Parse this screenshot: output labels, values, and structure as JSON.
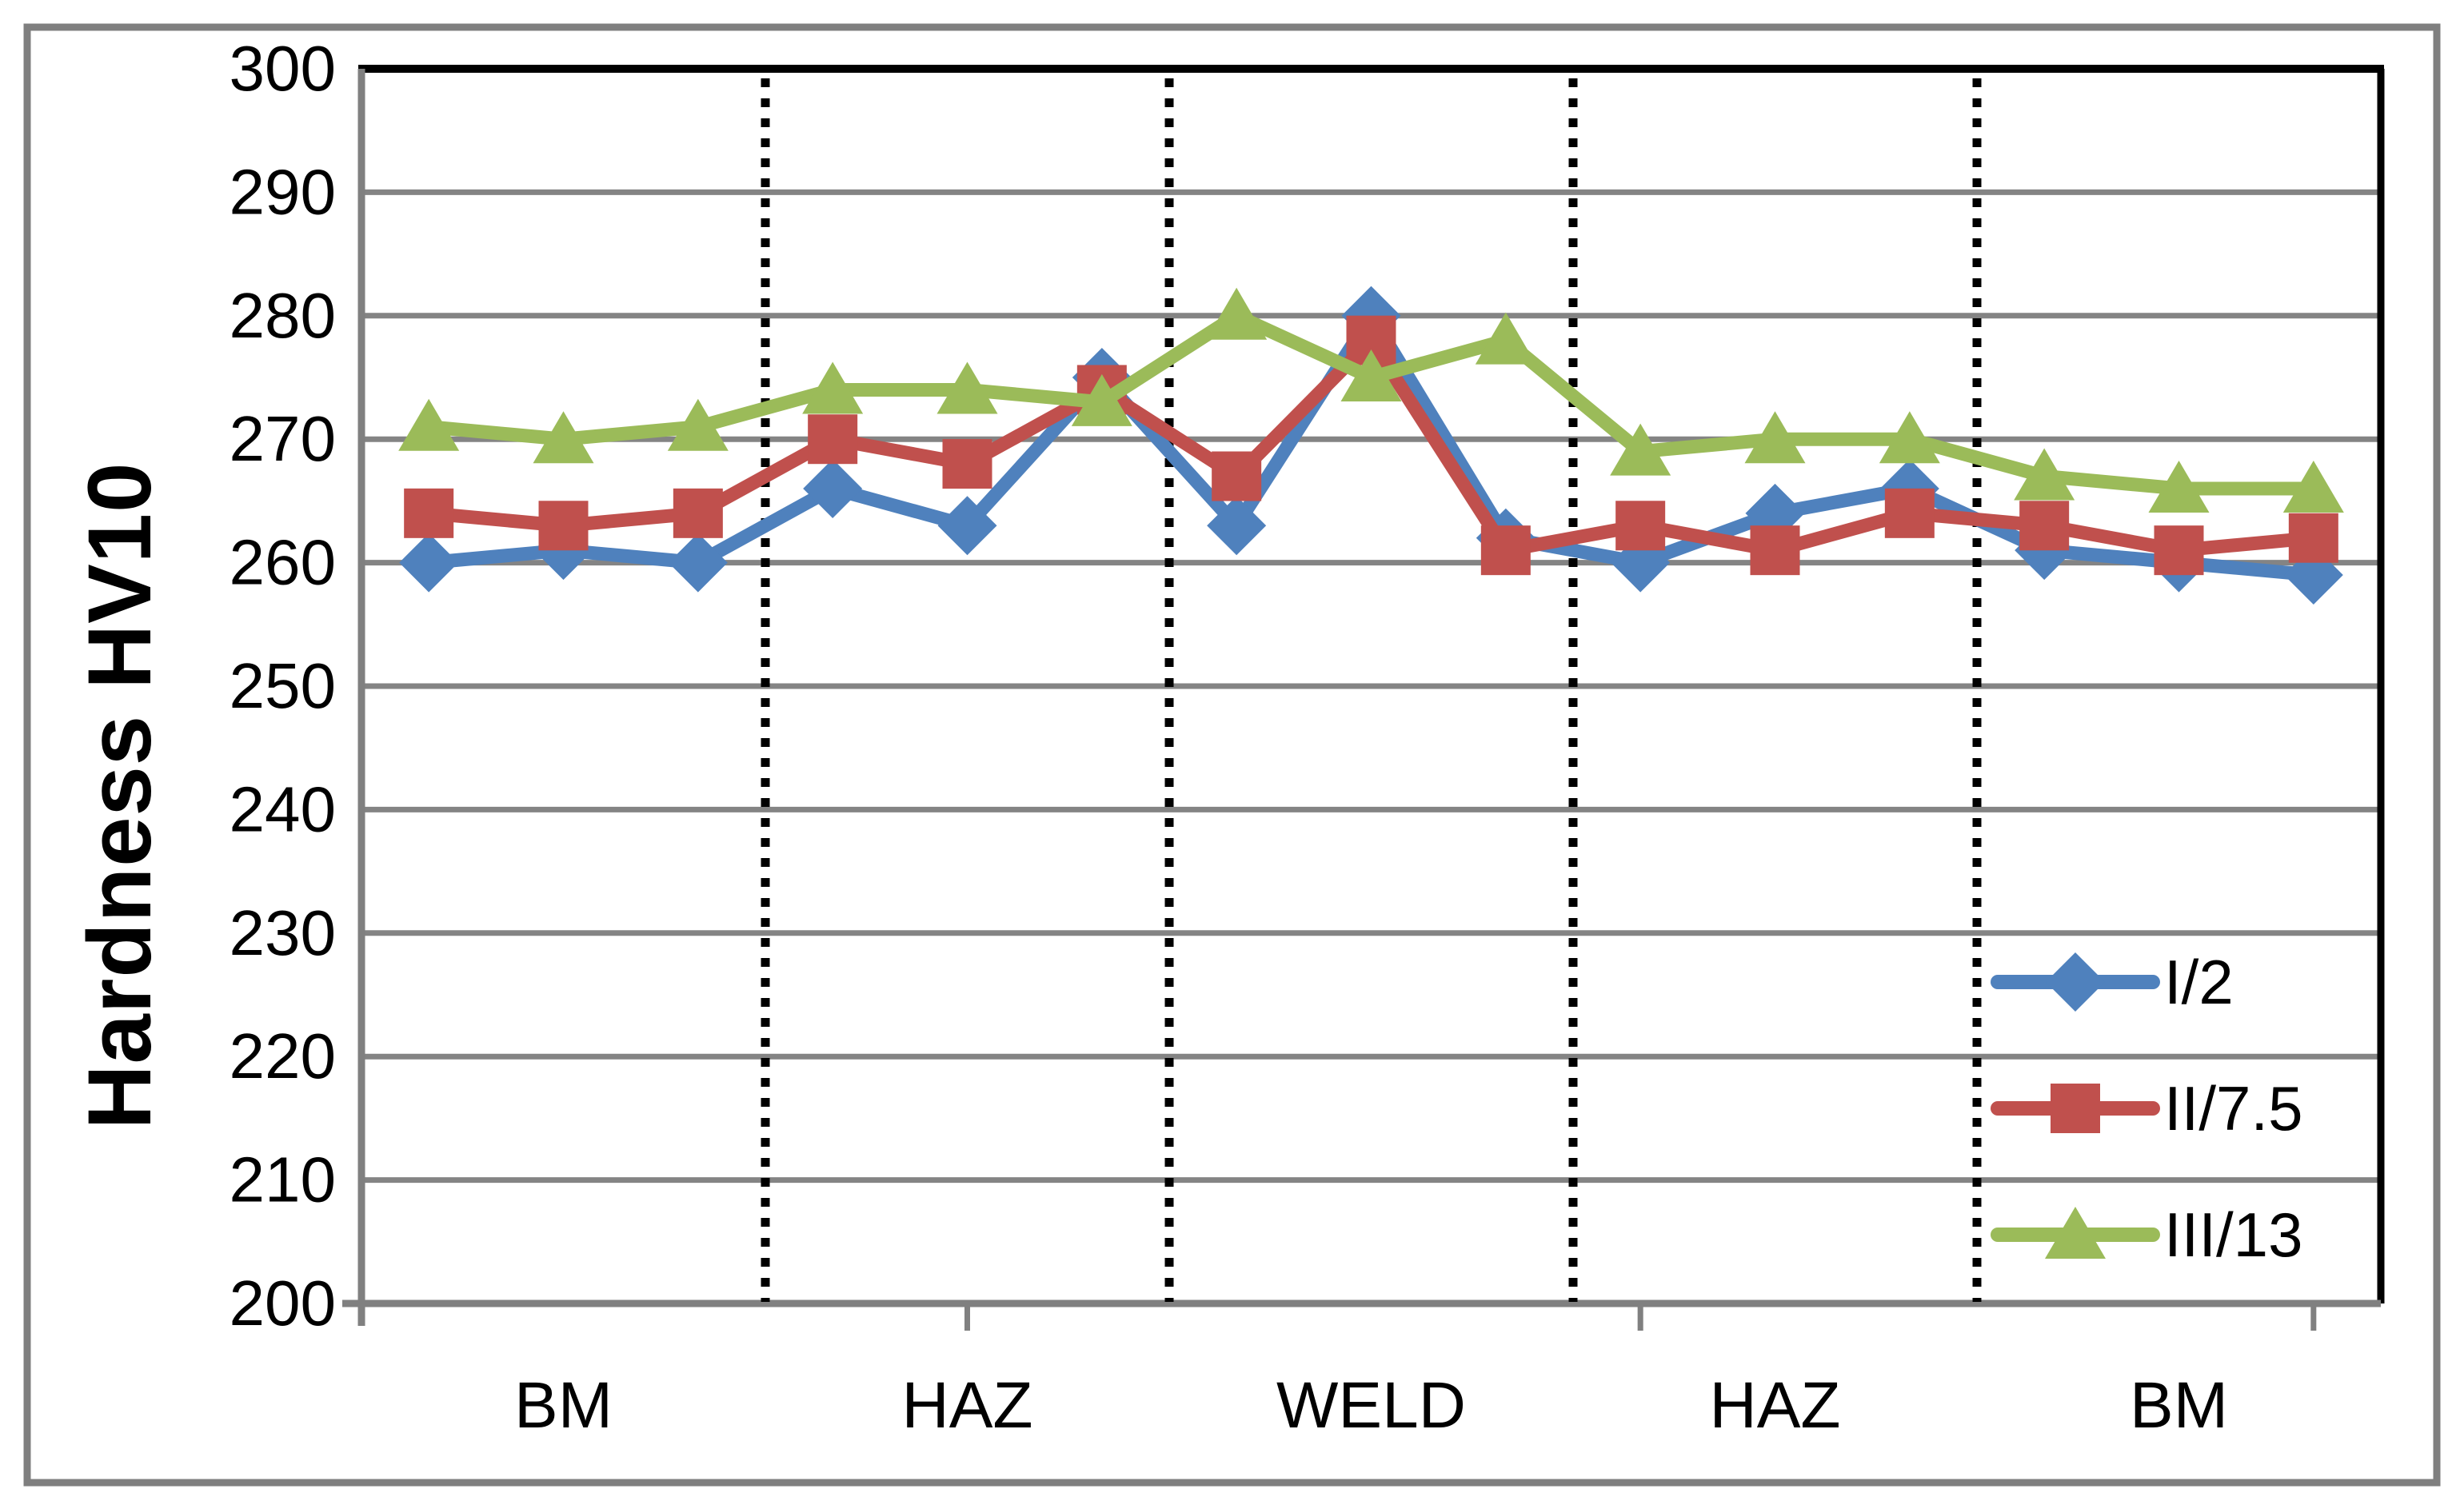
{
  "figure": {
    "background": "#ffffff",
    "outer_border_color": "#7f7f7f",
    "plot_border_top_right_color": "#000000",
    "axis_line_color": "#808080",
    "gridline_color": "#848484",
    "text_color": "#000000"
  },
  "chart_data": {
    "type": "line",
    "title": "",
    "xlabel": "",
    "ylabel": "Hardness HV10",
    "ylim": [
      200,
      300
    ],
    "ytick_interval": 10,
    "grid": "horizontal-only",
    "legend_position": "inside-right",
    "zone_divider_style": "black-dotted-vertical",
    "zones": [
      {
        "label": "BM",
        "points": 3
      },
      {
        "label": "HAZ",
        "points": 3
      },
      {
        "label": "WELD",
        "points": 3
      },
      {
        "label": "HAZ",
        "points": 3
      },
      {
        "label": "BM",
        "points": 3
      }
    ],
    "zone_boundaries_after_point": [
      3,
      6,
      9,
      12
    ],
    "x_axis_major_ticks_at_points": [
      5,
      10,
      15
    ],
    "series": [
      {
        "name": "I/2",
        "color": "#4F81BD",
        "marker": "diamond",
        "values": [
          260,
          261,
          260,
          266,
          263,
          275,
          263,
          280,
          262,
          260,
          264,
          266,
          261,
          260,
          259
        ]
      },
      {
        "name": "II/7.5",
        "color": "#C0504D",
        "marker": "square",
        "values": [
          264,
          263,
          264,
          270,
          268,
          274,
          267,
          278,
          261,
          263,
          261,
          264,
          263,
          261,
          262
        ]
      },
      {
        "name": "III/13",
        "color": "#9BBB59",
        "marker": "triangle",
        "values": [
          271,
          270,
          271,
          274,
          274,
          273,
          280,
          275,
          278,
          269,
          270,
          270,
          267,
          266,
          266
        ]
      }
    ]
  }
}
